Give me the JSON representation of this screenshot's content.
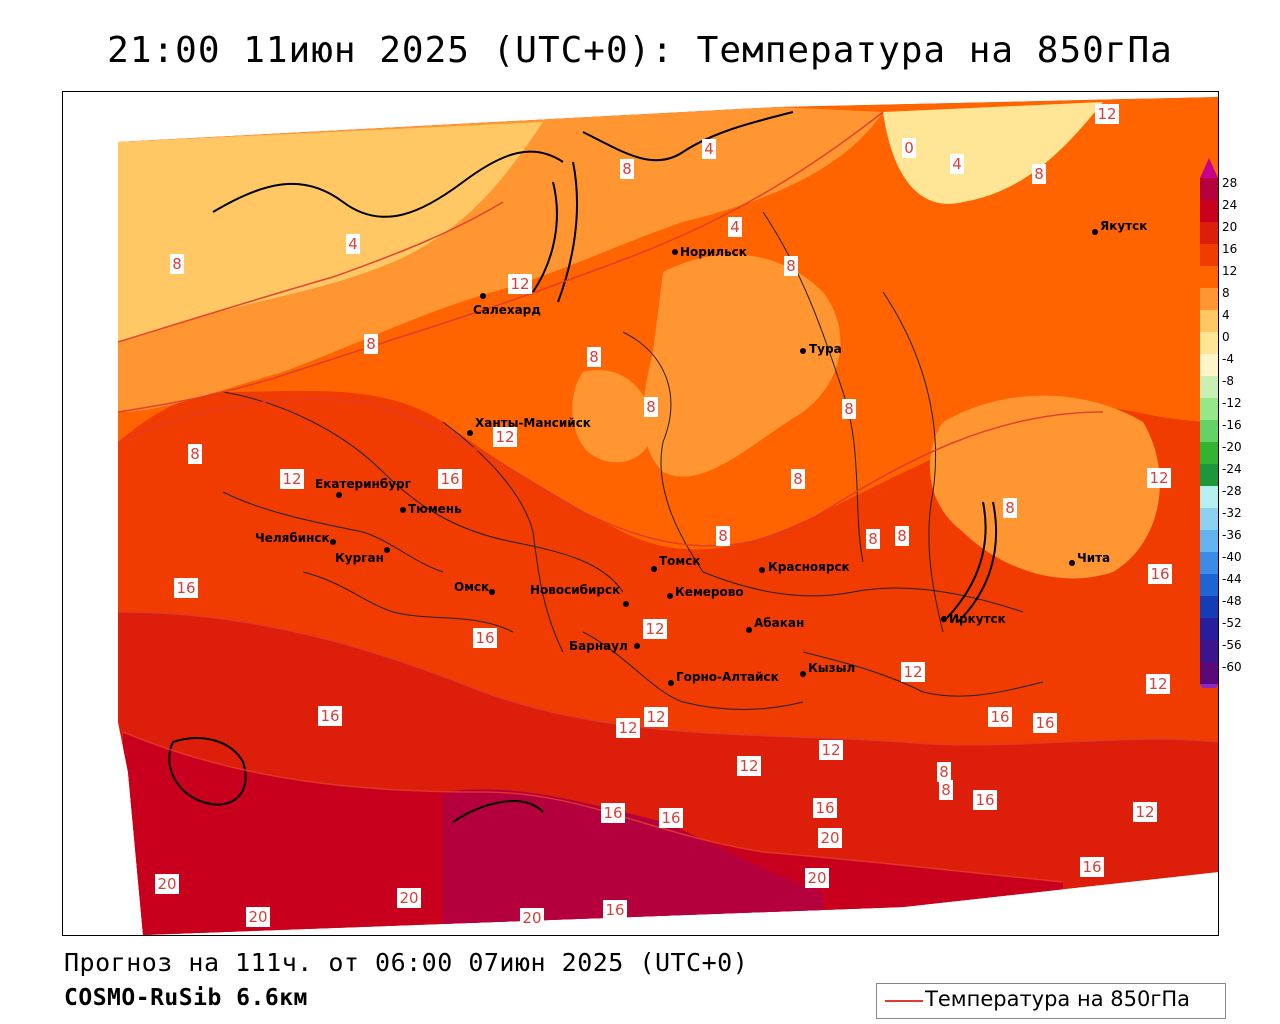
{
  "header": {
    "title": "21:00 11июн 2025 (UTC+0): Температура на 850гПа"
  },
  "footer": {
    "forecast": "Прогноз на 111ч. от 06:00 07июн 2025 (UTC+0)",
    "model": "COSMO-RuSib 6.6км"
  },
  "legend": {
    "label": "Температура на 850гПа",
    "line_color": "#e03a2e"
  },
  "scale": {
    "ticks": [
      "28",
      "24",
      "20",
      "16",
      "12",
      "8",
      "4",
      "0",
      "-4",
      "-8",
      "-12",
      "-16",
      "-20",
      "-24",
      "-28",
      "-32",
      "-36",
      "-40",
      "-44",
      "-48",
      "-52",
      "-56",
      "-60"
    ],
    "colors": [
      "#b4003c",
      "#c8001e",
      "#dc1e0a",
      "#f03c00",
      "#ff6400",
      "#ff9632",
      "#ffc864",
      "#ffe696",
      "#fff5c8",
      "#c8f0b4",
      "#96e68c",
      "#64d264",
      "#32b432",
      "#1e963c",
      "#b4f0f0",
      "#8cd2f0",
      "#64b4f0",
      "#3c8ce6",
      "#1e64d2",
      "#143cb4",
      "#281e9b",
      "#3c148c",
      "#5a0a78"
    ]
  },
  "cities": [
    {
      "name": "Салехард"
    },
    {
      "name": "Норильск"
    },
    {
      "name": "Якутск"
    },
    {
      "name": "Тура"
    },
    {
      "name": "Ханты-Мансийск"
    },
    {
      "name": "Екатеринбург"
    },
    {
      "name": "Тюмень"
    },
    {
      "name": "Челябинск"
    },
    {
      "name": "Курган"
    },
    {
      "name": "Омск"
    },
    {
      "name": "Новосибирск"
    },
    {
      "name": "Томск"
    },
    {
      "name": "Кемерово"
    },
    {
      "name": "Красноярск"
    },
    {
      "name": "Барнаул"
    },
    {
      "name": "Абакан"
    },
    {
      "name": "Горно-Алтайск"
    },
    {
      "name": "Кызыл"
    },
    {
      "name": "Иркутск"
    },
    {
      "name": "Чита"
    }
  ],
  "isotherm_labels": [
    "12",
    "4",
    "0",
    "4",
    "8",
    "8",
    "4",
    "4",
    "8",
    "12",
    "8",
    "8",
    "8",
    "8",
    "8",
    "12",
    "16",
    "12",
    "8",
    "8",
    "8",
    "8",
    "8",
    "12",
    "16",
    "16",
    "12",
    "8",
    "16",
    "16",
    "12",
    "12",
    "16",
    "16",
    "12",
    "8",
    "8",
    "12",
    "16",
    "16",
    "12",
    "16",
    "12",
    "20",
    "16",
    "20",
    "20",
    "20",
    "20",
    "16",
    "20",
    "16",
    "12"
  ]
}
